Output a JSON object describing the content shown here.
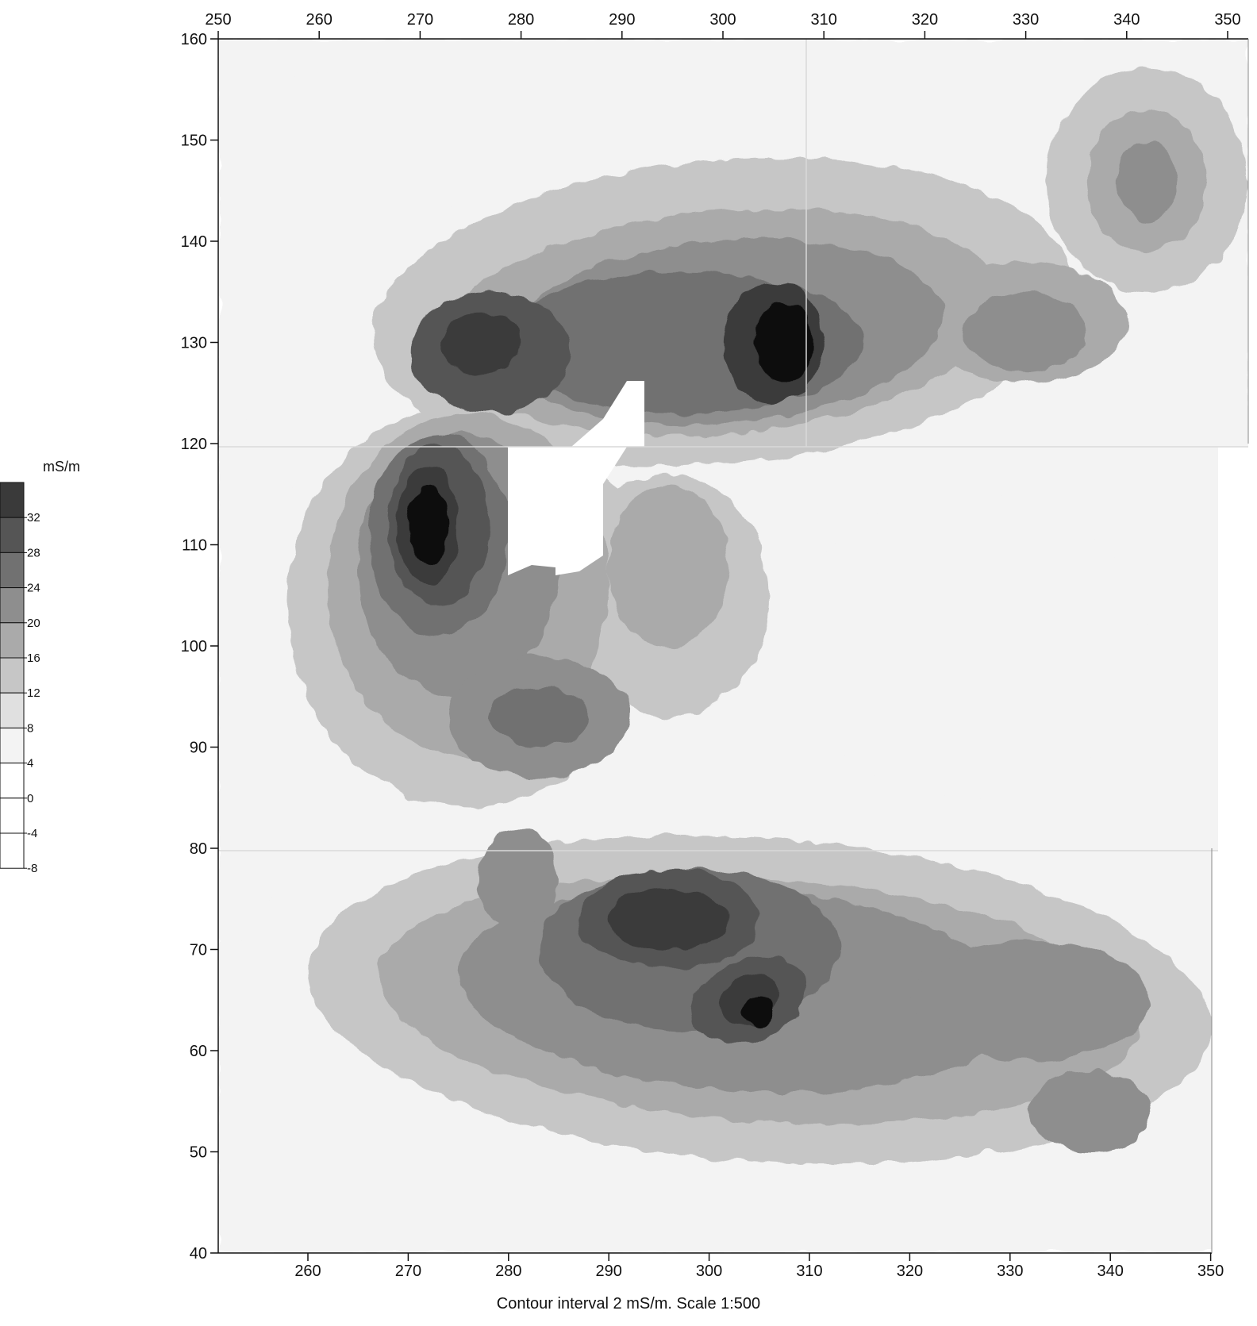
{
  "chart_data": {
    "type": "heatmap",
    "caption": "Contour interval 2 mS/m. Scale 1:500",
    "colorbar": {
      "unit": "mS/m",
      "levels": [
        -8,
        -4,
        0,
        4,
        8,
        12,
        16,
        20,
        24,
        28,
        32
      ],
      "labels": [
        "-8",
        "-4",
        "0",
        "4",
        "8",
        "12",
        "16",
        "20",
        "24",
        "28",
        "32"
      ],
      "max": 36,
      "colors": [
        "#ffffff",
        "#ffffff",
        "#ffffff",
        "#f3f3f3",
        "#e0e0e0",
        "#c6c6c6",
        "#aaaaaa",
        "#8e8e8e",
        "#717171",
        "#555555",
        "#3a3a3a"
      ]
    },
    "y_axis": {
      "range": [
        40,
        160
      ],
      "ticks": [
        40,
        50,
        60,
        70,
        80,
        90,
        100,
        110,
        120,
        130,
        140,
        150,
        160
      ],
      "tick_labels": [
        "40",
        "50",
        "60",
        "70",
        "80",
        "90",
        "100",
        "110",
        "120",
        "130",
        "140",
        "150",
        "160"
      ]
    },
    "panels": [
      {
        "name": "north",
        "y_range": [
          120,
          160
        ],
        "x_range": [
          250,
          352
        ],
        "x_ticks": [
          250,
          260,
          270,
          280,
          290,
          300,
          310,
          320,
          330,
          340,
          350
        ],
        "x_tick_labels": [
          "250",
          "260",
          "270",
          "280",
          "290",
          "300",
          "310",
          "320",
          "330",
          "340",
          "350"
        ],
        "x_axis_position": "top"
      },
      {
        "name": "middle",
        "y_range": [
          80,
          120
        ],
        "x_range": [
          250,
          350
        ],
        "x_ticks": [],
        "x_tick_labels": []
      },
      {
        "name": "south",
        "y_range": [
          40,
          80
        ],
        "x_range": [
          251,
          350
        ],
        "x_ticks": [
          260,
          270,
          280,
          290,
          300,
          310,
          320,
          330,
          340,
          350
        ],
        "x_tick_labels": [
          "260",
          "270",
          "280",
          "290",
          "300",
          "310",
          "320",
          "330",
          "340",
          "350"
        ],
        "x_axis_position": "bottom"
      }
    ],
    "anomalies": [
      {
        "x": 271,
        "y": 112,
        "value": 34
      },
      {
        "x": 305,
        "y": 130,
        "value": 34
      },
      {
        "x": 276,
        "y": 129,
        "value": 28
      },
      {
        "x": 296,
        "y": 73,
        "value": 34
      },
      {
        "x": 304,
        "y": 65,
        "value": 34
      },
      {
        "x": 332,
        "y": 66,
        "value": 24
      },
      {
        "x": 338,
        "y": 54,
        "value": 22
      },
      {
        "x": 342,
        "y": 147,
        "value": 16
      },
      {
        "x": 330,
        "y": 131,
        "value": 20
      },
      {
        "x": 283,
        "y": 93,
        "value": 24
      }
    ]
  }
}
